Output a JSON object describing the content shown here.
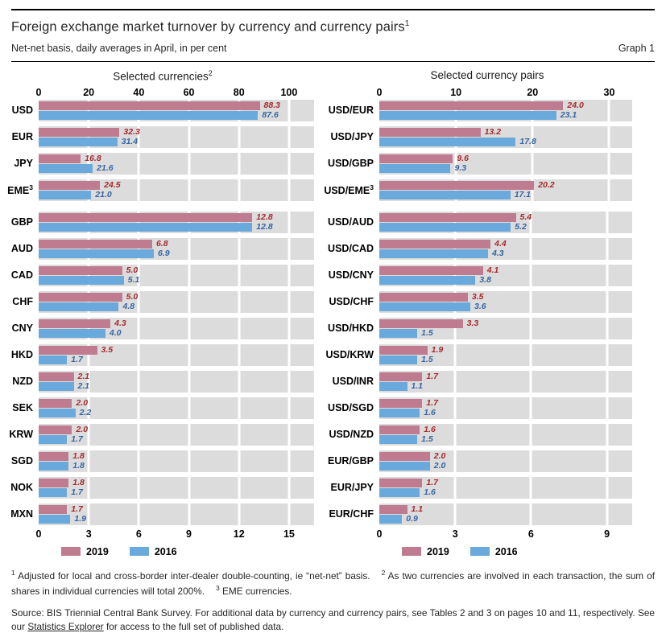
{
  "header": {
    "title": "Foreign exchange market turnover by currency and currency pairs",
    "title_sup": "1",
    "subtitle": "Net-net basis, daily averages in April, in per cent",
    "graph_label": "Graph 1"
  },
  "colors": {
    "bar_2019": "#bf7c90",
    "bar_2016": "#6aa9dc",
    "value_2019": "#a8282d",
    "value_2016": "#3465a4",
    "plot_bg": "#dcdcdc",
    "gridline": "#ffffff"
  },
  "legend": {
    "items": [
      {
        "label": "2019",
        "color": "#bf7c90"
      },
      {
        "label": "2016",
        "color": "#6aa9dc"
      }
    ]
  },
  "chart_data": [
    {
      "type": "bar",
      "orientation": "horizontal",
      "title": "Selected currencies",
      "title_sup": "2",
      "axis_position": "top",
      "xlim": [
        0,
        110
      ],
      "xmax": 110,
      "ticks": [
        0,
        20,
        40,
        60,
        80,
        100
      ],
      "categories": [
        {
          "label": "USD"
        },
        {
          "label": "EUR"
        },
        {
          "label": "JPY"
        },
        {
          "label": "EME",
          "sup": "3"
        }
      ],
      "series": [
        {
          "name": "2019",
          "values": [
            88.3,
            32.3,
            16.8,
            24.5
          ]
        },
        {
          "name": "2016",
          "values": [
            87.6,
            31.4,
            21.6,
            21.0
          ]
        }
      ],
      "show_legend": false
    },
    {
      "type": "bar",
      "orientation": "horizontal",
      "title": "Selected currency pairs",
      "title_sup": "",
      "axis_position": "top",
      "xlim": [
        0,
        33
      ],
      "xmax": 33,
      "ticks": [
        0,
        10,
        20,
        30
      ],
      "categories": [
        {
          "label": "USD/EUR"
        },
        {
          "label": "USD/JPY"
        },
        {
          "label": "USD/GBP"
        },
        {
          "label": "USD/EME",
          "sup": "3"
        }
      ],
      "series": [
        {
          "name": "2019",
          "values": [
            24.0,
            13.2,
            9.6,
            20.2
          ]
        },
        {
          "name": "2016",
          "values": [
            23.1,
            17.8,
            9.3,
            17.1
          ]
        }
      ],
      "show_legend": false
    },
    {
      "type": "bar",
      "orientation": "horizontal",
      "title": "",
      "title_sup": "",
      "axis_position": "bottom",
      "xlim": [
        0,
        16.5
      ],
      "xmax": 16.5,
      "ticks": [
        0,
        3,
        6,
        9,
        12,
        15
      ],
      "categories": [
        {
          "label": "GBP"
        },
        {
          "label": "AUD"
        },
        {
          "label": "CAD"
        },
        {
          "label": "CHF"
        },
        {
          "label": "CNY"
        },
        {
          "label": "HKD"
        },
        {
          "label": "NZD"
        },
        {
          "label": "SEK"
        },
        {
          "label": "KRW"
        },
        {
          "label": "SGD"
        },
        {
          "label": "NOK"
        },
        {
          "label": "MXN"
        }
      ],
      "series": [
        {
          "name": "2019",
          "values": [
            12.8,
            6.8,
            5.0,
            5.0,
            4.3,
            3.5,
            2.1,
            2.0,
            2.0,
            1.8,
            1.8,
            1.7
          ]
        },
        {
          "name": "2016",
          "values": [
            12.8,
            6.9,
            5.1,
            4.8,
            4.0,
            1.7,
            2.1,
            2.2,
            1.7,
            1.8,
            1.7,
            1.9
          ]
        }
      ],
      "show_legend": true
    },
    {
      "type": "bar",
      "orientation": "horizontal",
      "title": "",
      "title_sup": "",
      "axis_position": "bottom",
      "xlim": [
        0,
        10
      ],
      "xmax": 10,
      "ticks": [
        0,
        3,
        6,
        9
      ],
      "categories": [
        {
          "label": "USD/AUD"
        },
        {
          "label": "USD/CAD"
        },
        {
          "label": "USD/CNY"
        },
        {
          "label": "USD/CHF"
        },
        {
          "label": "USD/HKD"
        },
        {
          "label": "USD/KRW"
        },
        {
          "label": "USD/INR"
        },
        {
          "label": "USD/SGD"
        },
        {
          "label": "USD/NZD"
        },
        {
          "label": "EUR/GBP"
        },
        {
          "label": "EUR/JPY"
        },
        {
          "label": "EUR/CHF"
        }
      ],
      "series": [
        {
          "name": "2019",
          "values": [
            5.4,
            4.4,
            4.1,
            3.5,
            3.3,
            1.9,
            1.7,
            1.7,
            1.6,
            2.0,
            1.7,
            1.1
          ]
        },
        {
          "name": "2016",
          "values": [
            5.2,
            4.3,
            3.8,
            3.6,
            1.5,
            1.5,
            1.1,
            1.6,
            1.5,
            2.0,
            1.6,
            0.9
          ]
        }
      ],
      "show_legend": true
    }
  ],
  "footnotes": [
    {
      "sup": "1",
      "text": "Adjusted for local and cross-border inter-dealer double-counting, ie “net-net” basis."
    },
    {
      "sup": "2",
      "text": "As two currencies are involved in each transaction, the sum of shares in individual currencies will total 200%."
    },
    {
      "sup": "3",
      "text": "EME currencies."
    }
  ],
  "source": {
    "text_before": "Source: BIS Triennial Central Bank Survey. For additional data by currency and currency pairs, see Tables 2 and 3 on pages 10 and 11, respectively. See our ",
    "link_text": "Statistics Explorer",
    "text_after": " for access to the full set of published data."
  }
}
